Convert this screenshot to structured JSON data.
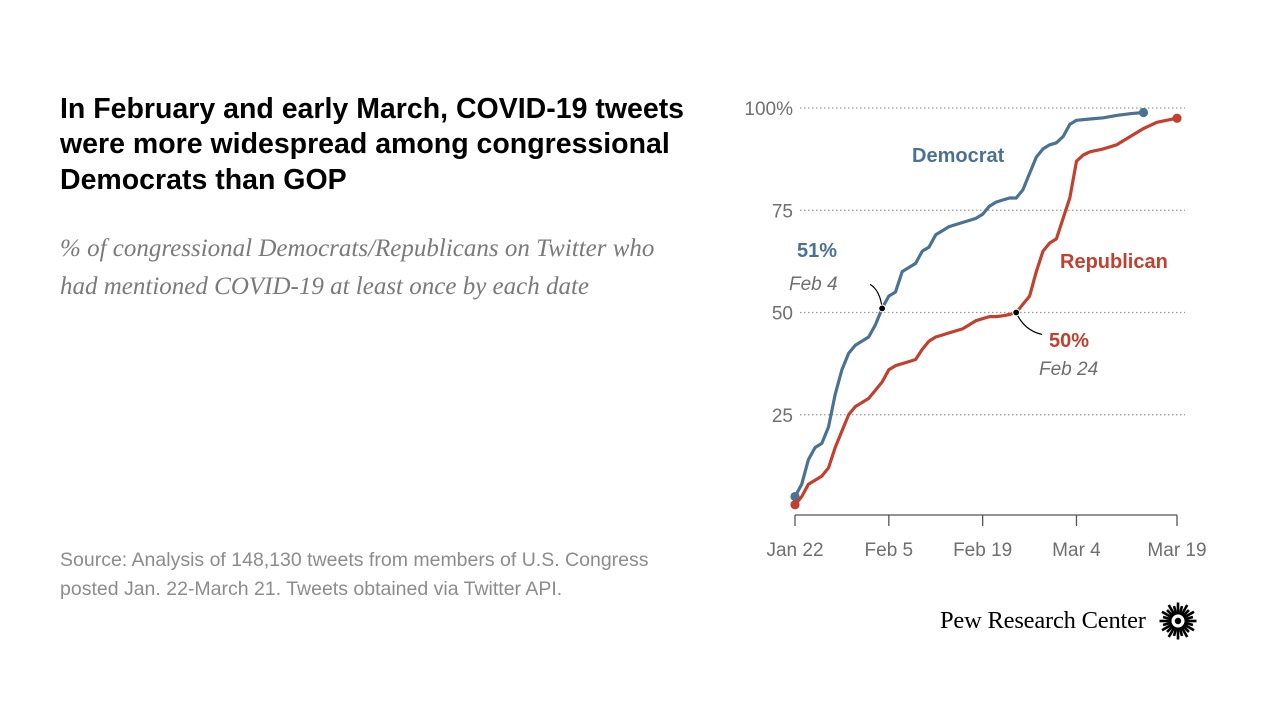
{
  "title": "In February and early March, COVID-19 tweets were more widespread among congressional Democrats than GOP",
  "subtitle": "% of congressional Democrats/Republicans on Twitter who had mentioned COVID-19 at least once by each date",
  "source": "Source: Analysis of 148,130 tweets from members of U.S. Congress posted Jan. 22-March 21. Tweets obtained via Twitter API.",
  "brand": {
    "name": "Pew Research Center",
    "logo_icon": "pew-sunburst-icon"
  },
  "colors": {
    "democrat": "#4a7393",
    "republican": "#c3402f",
    "grid": "#9a9a9a",
    "axis": "#555555",
    "text_gray": "#6f6f6f"
  },
  "chart_data": {
    "type": "line",
    "title": "",
    "xlabel": "",
    "ylabel": "",
    "ylim": [
      0,
      100
    ],
    "y_ticks": [
      {
        "value": 100,
        "label": "100%"
      },
      {
        "value": 75,
        "label": "75"
      },
      {
        "value": 50,
        "label": "50"
      },
      {
        "value": 25,
        "label": "25"
      }
    ],
    "x_ticks": [
      {
        "date": "2020-01-22",
        "label": "Jan 22"
      },
      {
        "date": "2020-02-05",
        "label": "Feb 5"
      },
      {
        "date": "2020-02-19",
        "label": "Feb 19"
      },
      {
        "date": "2020-03-04",
        "label": "Mar 4"
      },
      {
        "date": "2020-03-19",
        "label": "Mar 19"
      }
    ],
    "x_range": [
      "2020-01-22",
      "2020-03-19"
    ],
    "grid": true,
    "series": [
      {
        "name": "Democrat",
        "color": "#4a7393",
        "points": [
          [
            "2020-01-22",
            5
          ],
          [
            "2020-01-23",
            8
          ],
          [
            "2020-01-24",
            14
          ],
          [
            "2020-01-25",
            17
          ],
          [
            "2020-01-26",
            18
          ],
          [
            "2020-01-27",
            22
          ],
          [
            "2020-01-28",
            30
          ],
          [
            "2020-01-29",
            36
          ],
          [
            "2020-01-30",
            40
          ],
          [
            "2020-01-31",
            42
          ],
          [
            "2020-02-01",
            43
          ],
          [
            "2020-02-02",
            44
          ],
          [
            "2020-02-03",
            47
          ],
          [
            "2020-02-04",
            51
          ],
          [
            "2020-02-05",
            54
          ],
          [
            "2020-02-06",
            55
          ],
          [
            "2020-02-07",
            60
          ],
          [
            "2020-02-08",
            61
          ],
          [
            "2020-02-09",
            62
          ],
          [
            "2020-02-10",
            65
          ],
          [
            "2020-02-11",
            66
          ],
          [
            "2020-02-12",
            69
          ],
          [
            "2020-02-13",
            70
          ],
          [
            "2020-02-14",
            71
          ],
          [
            "2020-02-16",
            72
          ],
          [
            "2020-02-18",
            73
          ],
          [
            "2020-02-19",
            74
          ],
          [
            "2020-02-20",
            76
          ],
          [
            "2020-02-21",
            77
          ],
          [
            "2020-02-22",
            77.5
          ],
          [
            "2020-02-23",
            78
          ],
          [
            "2020-02-24",
            78
          ],
          [
            "2020-02-25",
            80
          ],
          [
            "2020-02-26",
            84
          ],
          [
            "2020-02-27",
            88
          ],
          [
            "2020-02-28",
            90
          ],
          [
            "2020-02-29",
            91
          ],
          [
            "2020-03-01",
            91.5
          ],
          [
            "2020-03-02",
            93
          ],
          [
            "2020-03-03",
            96
          ],
          [
            "2020-03-04",
            97
          ],
          [
            "2020-03-06",
            97.3
          ],
          [
            "2020-03-08",
            97.6
          ],
          [
            "2020-03-10",
            98.2
          ],
          [
            "2020-03-12",
            98.6
          ],
          [
            "2020-03-14",
            98.9
          ]
        ]
      },
      {
        "name": "Republican",
        "color": "#c3402f",
        "points": [
          [
            "2020-01-22",
            3
          ],
          [
            "2020-01-23",
            5
          ],
          [
            "2020-01-24",
            8
          ],
          [
            "2020-01-25",
            9
          ],
          [
            "2020-01-26",
            10
          ],
          [
            "2020-01-27",
            12
          ],
          [
            "2020-01-28",
            17
          ],
          [
            "2020-01-29",
            21
          ],
          [
            "2020-01-30",
            25
          ],
          [
            "2020-01-31",
            27
          ],
          [
            "2020-02-01",
            28
          ],
          [
            "2020-02-02",
            29
          ],
          [
            "2020-02-03",
            31
          ],
          [
            "2020-02-04",
            33
          ],
          [
            "2020-02-05",
            36
          ],
          [
            "2020-02-06",
            37
          ],
          [
            "2020-02-07",
            37.5
          ],
          [
            "2020-02-08",
            38
          ],
          [
            "2020-02-09",
            38.5
          ],
          [
            "2020-02-10",
            41
          ],
          [
            "2020-02-11",
            43
          ],
          [
            "2020-02-12",
            44
          ],
          [
            "2020-02-13",
            44.5
          ],
          [
            "2020-02-14",
            45
          ],
          [
            "2020-02-16",
            46
          ],
          [
            "2020-02-18",
            48
          ],
          [
            "2020-02-20",
            49
          ],
          [
            "2020-02-21",
            49
          ],
          [
            "2020-02-22",
            49.2
          ],
          [
            "2020-02-23",
            49.5
          ],
          [
            "2020-02-24",
            50
          ],
          [
            "2020-02-25",
            52
          ],
          [
            "2020-02-26",
            54
          ],
          [
            "2020-02-27",
            60
          ],
          [
            "2020-02-28",
            65
          ],
          [
            "2020-02-29",
            67
          ],
          [
            "2020-03-01",
            68
          ],
          [
            "2020-03-02",
            73
          ],
          [
            "2020-03-03",
            78
          ],
          [
            "2020-03-04",
            87
          ],
          [
            "2020-03-05",
            88.5
          ],
          [
            "2020-03-06",
            89.3
          ],
          [
            "2020-03-08",
            90
          ],
          [
            "2020-03-10",
            91
          ],
          [
            "2020-03-12",
            93
          ],
          [
            "2020-03-14",
            95
          ],
          [
            "2020-03-16",
            96.5
          ],
          [
            "2020-03-19",
            97.5
          ]
        ]
      }
    ],
    "annotations": [
      {
        "series": "Democrat",
        "date": "2020-02-04",
        "value": 51,
        "value_label": "51%",
        "date_label": "Feb 4"
      },
      {
        "series": "Republican",
        "date": "2020-02-24",
        "value": 50,
        "value_label": "50%",
        "date_label": "Feb 24"
      }
    ]
  }
}
